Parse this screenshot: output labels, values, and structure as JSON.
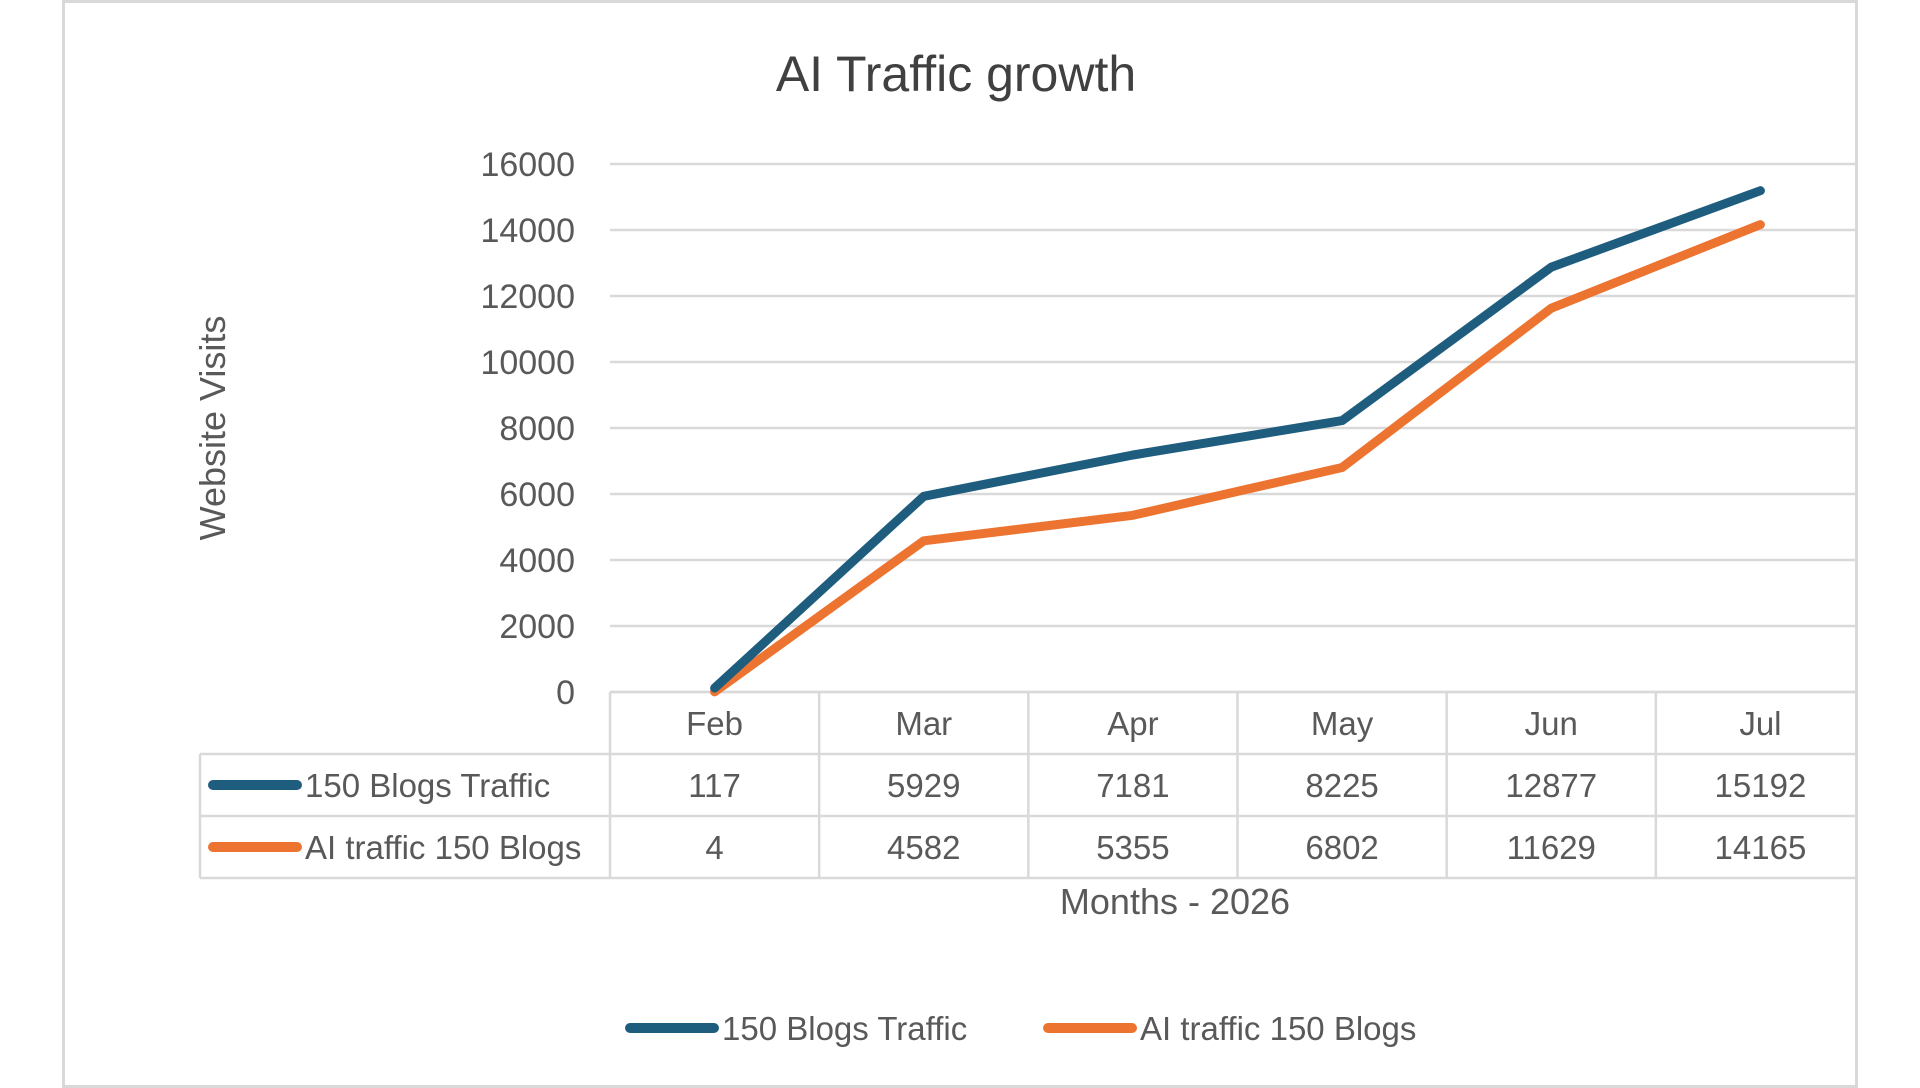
{
  "chart_data": {
    "type": "line",
    "title": "AI Traffic growth",
    "xlabel": "Months - 2026",
    "ylabel": "Website Visits",
    "categories": [
      "Feb",
      "Mar",
      "Apr",
      "May",
      "Jun",
      "Jul"
    ],
    "series": [
      {
        "name": "150 Blogs Traffic",
        "color": "#1f5d7f",
        "values": [
          117,
          5929,
          7181,
          8225,
          12877,
          15192
        ]
      },
      {
        "name": "AI traffic 150 Blogs",
        "color": "#ed7430",
        "values": [
          4,
          4582,
          5355,
          6802,
          11629,
          14165
        ]
      }
    ],
    "yticks": [
      "0",
      "2000",
      "4000",
      "6000",
      "8000",
      "10000",
      "12000",
      "14000",
      "16000"
    ],
    "ylim": [
      0,
      16000
    ],
    "grid": true,
    "data_table": true,
    "legend_position": "bottom",
    "colors": {
      "gridline": "#d9d9d9",
      "text": "#595959",
      "title": "#404040",
      "frame": "#d9d9d9"
    }
  }
}
